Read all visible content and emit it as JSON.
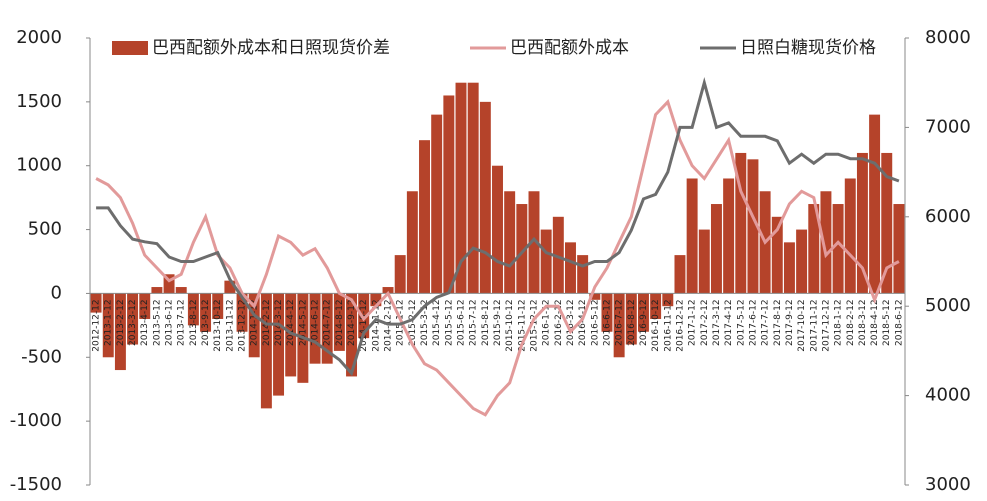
{
  "chart_data": {
    "type": "bar_line_dual",
    "categories": [
      "2012-12-12",
      "2013-1-12",
      "2013-2-12",
      "2013-3-12",
      "2013-4-12",
      "2013-5-12",
      "2013-6-12",
      "2013-7-12",
      "2013-8-12",
      "2013-9-12",
      "2013-10-12",
      "2013-11-12",
      "2013-12-12",
      "2014-1-12",
      "2014-2-12",
      "2014-3-12",
      "2014-4-12",
      "2014-5-12",
      "2014-6-12",
      "2014-7-12",
      "2014-8-12",
      "2014-9-12",
      "2014-10-12",
      "2014-11-12",
      "2014-12-12",
      "2015-1-12",
      "2015-2-12",
      "2015-3-12",
      "2015-4-12",
      "2015-5-12",
      "2015-6-12",
      "2015-7-12",
      "2015-8-12",
      "2015-9-12",
      "2015-10-12",
      "2015-11-12",
      "2015-12-12",
      "2016-1-12",
      "2016-2-12",
      "2016-3-12",
      "2016-4-12",
      "2016-5-12",
      "2016-6-12",
      "2016-7-12",
      "2016-8-12",
      "2016-9-12",
      "2016-10-12",
      "2016-11-12",
      "2016-12-12",
      "2017-1-12",
      "2017-2-12",
      "2017-3-12",
      "2017-4-12",
      "2017-5-12",
      "2017-6-12",
      "2017-7-12",
      "2017-8-12",
      "2017-9-12",
      "2017-10-12",
      "2017-11-12",
      "2017-12-12",
      "2018-1-12",
      "2018-2-12",
      "2018-3-12",
      "2018-4-12",
      "2018-5-12",
      "2018-6-12"
    ],
    "series": [
      {
        "name": "巴西配额外成本和日照现货价差",
        "type": "bar",
        "color": "#b5432a",
        "values": [
          -150,
          -500,
          -600,
          -400,
          -200,
          50,
          150,
          50,
          -250,
          -300,
          -200,
          100,
          -300,
          -500,
          -900,
          -800,
          -650,
          -700,
          -550,
          -550,
          -450,
          -650,
          -350,
          -100,
          50,
          300,
          800,
          1200,
          1400,
          1550,
          1650,
          1650,
          1500,
          1000,
          800,
          700,
          800,
          500,
          600,
          400,
          300,
          -50,
          -300,
          -500,
          -400,
          -300,
          -200,
          -100,
          300,
          900,
          500,
          700,
          900,
          1100,
          1050,
          800,
          600,
          400,
          500,
          700,
          800,
          700,
          900,
          1100,
          1400,
          1100,
          700
        ]
      },
      {
        "name": "巴西配额外成本",
        "type": "line",
        "color": "#e29a9a",
        "values": [
          900,
          850,
          750,
          550,
          300,
          200,
          100,
          150,
          400,
          600,
          300,
          200,
          0,
          -100,
          150,
          450,
          400,
          300,
          350,
          200,
          0,
          -50,
          -200,
          -100,
          0,
          -200,
          -400,
          -550,
          -600,
          -700,
          -800,
          -900,
          -950,
          -800,
          -700,
          -400,
          -200,
          -100,
          -100,
          -300,
          -200,
          50,
          200,
          400,
          600,
          1000,
          1400,
          1500,
          1200,
          1000,
          900,
          1050,
          1200,
          800,
          600,
          400,
          500,
          700,
          800,
          750,
          300,
          400,
          300,
          200,
          -50,
          200,
          250
        ]
      },
      {
        "name": "日照白糖现货价格",
        "type": "line",
        "color": "#6d6d6d",
        "axis": "y2",
        "values": [
          6100,
          6100,
          5900,
          5750,
          5720,
          5700,
          5550,
          5500,
          5500,
          5550,
          5600,
          5300,
          5100,
          4900,
          4800,
          4800,
          4700,
          4650,
          4600,
          4500,
          4400,
          4250,
          4700,
          4850,
          4800,
          4800,
          4850,
          5000,
          5100,
          5150,
          5500,
          5650,
          5600,
          5500,
          5450,
          5600,
          5750,
          5600,
          5550,
          5500,
          5450,
          5500,
          5500,
          5600,
          5850,
          6200,
          6250,
          6500,
          7000,
          7000,
          7500,
          7000,
          7050,
          6900,
          6900,
          6900,
          6850,
          6600,
          6700,
          6600,
          6700,
          6700,
          6650,
          6650,
          6600,
          6450,
          6400
        ]
      }
    ],
    "ylim": [
      -1500,
      2000
    ],
    "yticks": [
      -1500,
      -1000,
      -500,
      0,
      500,
      1000,
      1500,
      2000
    ],
    "y2lim": [
      3000,
      8000
    ],
    "y2ticks": [
      3000,
      4000,
      5000,
      6000,
      7000,
      8000
    ],
    "legend": "top"
  }
}
